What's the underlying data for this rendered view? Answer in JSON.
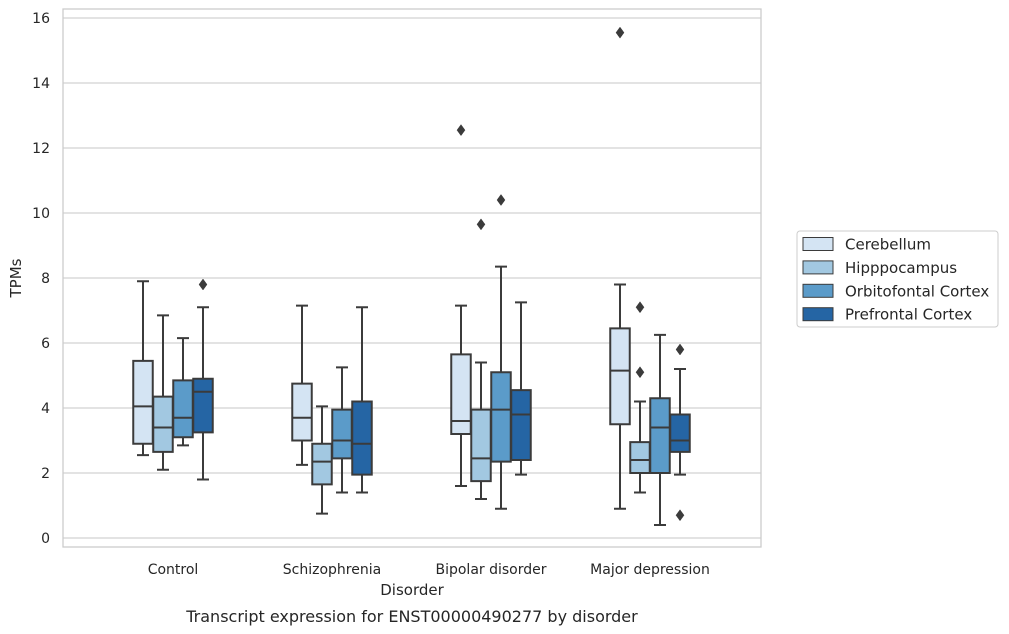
{
  "chart_data": {
    "type": "box",
    "title": "",
    "caption": "Transcript expression for ENST00000490277 by disorder",
    "xlabel": "Disorder",
    "ylabel": "TPMs",
    "ylim": [
      -0.3,
      16.3
    ],
    "yticks": [
      "0",
      "2",
      "4",
      "6",
      "8",
      "10",
      "12",
      "14",
      "16"
    ],
    "grid": true,
    "legend_position": "right",
    "categories": [
      "Control",
      "Schizophrenia",
      "Bipolar disorder",
      "Major depression"
    ],
    "series": [
      {
        "name": "Cerebellum",
        "color": "#d4e4f3",
        "boxes": [
          {
            "whisker_low": 2.55,
            "q1": 2.9,
            "median": 4.05,
            "q3": 5.45,
            "whisker_high": 7.9,
            "outliers": []
          },
          {
            "whisker_low": 2.25,
            "q1": 3.0,
            "median": 3.7,
            "q3": 4.75,
            "whisker_high": 7.15,
            "outliers": []
          },
          {
            "whisker_low": 1.6,
            "q1": 3.2,
            "median": 3.6,
            "q3": 5.65,
            "whisker_high": 7.15,
            "outliers": [
              12.55
            ]
          },
          {
            "whisker_low": 0.9,
            "q1": 3.5,
            "median": 5.15,
            "q3": 6.45,
            "whisker_high": 7.8,
            "outliers": [
              15.55
            ]
          }
        ]
      },
      {
        "name": "Hipppocampus",
        "color": "#a2c8e1",
        "boxes": [
          {
            "whisker_low": 2.1,
            "q1": 2.65,
            "median": 3.4,
            "q3": 4.35,
            "whisker_high": 6.85,
            "outliers": []
          },
          {
            "whisker_low": 0.75,
            "q1": 1.65,
            "median": 2.35,
            "q3": 2.9,
            "whisker_high": 4.05,
            "outliers": []
          },
          {
            "whisker_low": 1.2,
            "q1": 1.75,
            "median": 2.45,
            "q3": 3.95,
            "whisker_high": 5.4,
            "outliers": [
              9.65
            ]
          },
          {
            "whisker_low": 1.4,
            "q1": 2.0,
            "median": 2.4,
            "q3": 2.95,
            "whisker_high": 4.2,
            "outliers": [
              5.1,
              7.1
            ]
          }
        ]
      },
      {
        "name": "Orbitofontal Cortex",
        "color": "#5b9bc9",
        "boxes": [
          {
            "whisker_low": 2.85,
            "q1": 3.1,
            "median": 3.7,
            "q3": 4.85,
            "whisker_high": 6.15,
            "outliers": []
          },
          {
            "whisker_low": 1.4,
            "q1": 2.45,
            "median": 3.0,
            "q3": 3.95,
            "whisker_high": 5.25,
            "outliers": []
          },
          {
            "whisker_low": 0.9,
            "q1": 2.35,
            "median": 3.95,
            "q3": 5.1,
            "whisker_high": 8.35,
            "outliers": [
              10.4
            ]
          },
          {
            "whisker_low": 0.4,
            "q1": 2.0,
            "median": 3.4,
            "q3": 4.3,
            "whisker_high": 6.25,
            "outliers": []
          }
        ]
      },
      {
        "name": "Prefrontal Cortex",
        "color": "#2565a4",
        "boxes": [
          {
            "whisker_low": 1.8,
            "q1": 3.25,
            "median": 4.5,
            "q3": 4.9,
            "whisker_high": 7.1,
            "outliers": [
              7.8
            ]
          },
          {
            "whisker_low": 1.4,
            "q1": 1.95,
            "median": 2.9,
            "q3": 4.2,
            "whisker_high": 7.1,
            "outliers": []
          },
          {
            "whisker_low": 1.95,
            "q1": 2.4,
            "median": 3.8,
            "q3": 4.55,
            "whisker_high": 7.25,
            "outliers": []
          },
          {
            "whisker_low": 1.95,
            "q1": 2.65,
            "median": 3.0,
            "q3": 3.8,
            "whisker_high": 5.2,
            "outliers": [
              0.7,
              5.8
            ]
          }
        ]
      }
    ]
  }
}
